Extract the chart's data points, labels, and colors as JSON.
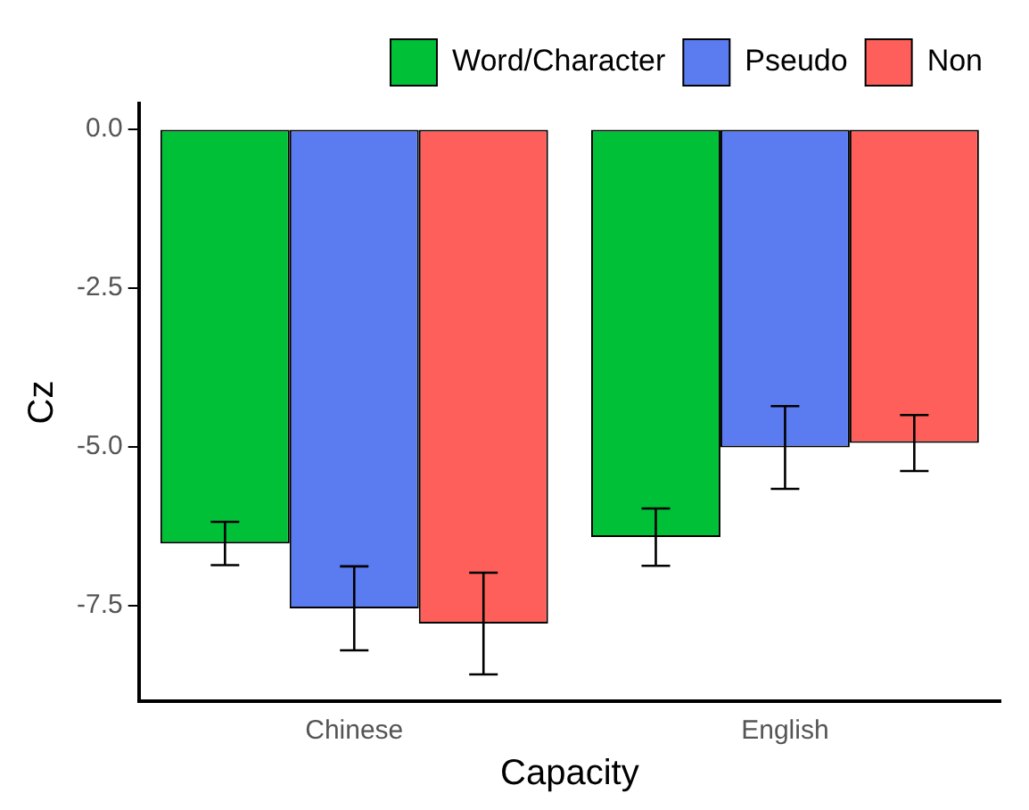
{
  "chart_data": {
    "type": "bar",
    "xlabel": "Capacity",
    "ylabel": "Cz",
    "categories": [
      "Chinese",
      "English"
    ],
    "series": [
      {
        "name": "Word/Character",
        "color": "#00c038",
        "values": [
          -6.52,
          -6.42
        ],
        "errors": [
          0.34,
          0.45
        ]
      },
      {
        "name": "Pseudo",
        "color": "#5b7cf0",
        "values": [
          -7.54,
          -5.01
        ],
        "errors": [
          0.66,
          0.65
        ]
      },
      {
        "name": "Non",
        "color": "#ff5f5a",
        "values": [
          -7.78,
          -4.94
        ],
        "errors": [
          0.8,
          0.44
        ]
      }
    ],
    "ylim": [
      -9,
      0.4
    ],
    "yticks": [
      {
        "value": 0,
        "label": "0.0"
      },
      -2.5,
      {
        "value": -5,
        "label": "-5.0"
      },
      -7.5
    ],
    "grid": false,
    "legend": "top right"
  }
}
